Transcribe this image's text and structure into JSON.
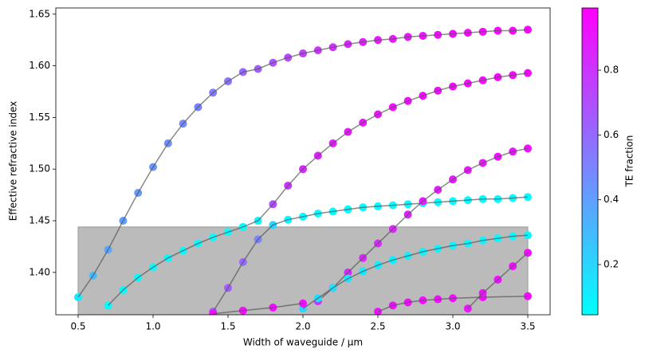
{
  "chart_data": {
    "type": "scatter",
    "xlabel": "Width of waveguide / µm",
    "ylabel": "Effective refractive index",
    "xlim": [
      0.351,
      3.649
    ],
    "ylim": [
      1.359,
      1.656
    ],
    "xticks": [
      0.5,
      {
        "value": 1.0,
        "label": "1.0"
      },
      1.5,
      {
        "value": 2.0,
        "label": "2.0"
      },
      2.5,
      {
        "value": 3.0,
        "label": "3.0"
      },
      3.5
    ],
    "yticks": [
      {
        "value": 1.4,
        "label": "1.40"
      },
      1.45,
      {
        "value": 1.5,
        "label": "1.50"
      },
      1.55,
      {
        "value": 1.6,
        "label": "1.60"
      },
      1.65
    ],
    "shaded_region": {
      "x": [
        0.5,
        3.5
      ],
      "y_top": 1.444,
      "color": "#bbbbbb"
    },
    "colorbar": {
      "label": "TE fraction",
      "colormap": "cool",
      "lim": [
        0.045,
        0.992
      ],
      "ticks": [
        0.2,
        0.4,
        0.6,
        0.8
      ]
    },
    "series": [
      {
        "x": [
          0.5,
          0.6,
          0.7,
          0.8,
          0.9,
          1.0,
          1.1,
          1.2,
          1.3,
          1.4,
          1.5,
          1.6,
          1.7,
          1.8,
          1.9,
          2.0,
          2.1,
          2.2,
          2.3,
          2.4,
          2.5,
          2.6,
          2.7,
          2.8,
          2.9,
          3.0,
          3.1,
          3.2,
          3.3,
          3.4,
          3.5
        ],
        "y": [
          1.376,
          1.397,
          1.422,
          1.45,
          1.477,
          1.502,
          1.525,
          1.544,
          1.56,
          1.574,
          1.585,
          1.594,
          1.597,
          1.603,
          1.608,
          1.612,
          1.615,
          1.618,
          1.621,
          1.623,
          1.625,
          1.626,
          1.628,
          1.629,
          1.63,
          1.631,
          1.632,
          1.633,
          1.634,
          1.634,
          1.635
        ],
        "te": [
          0.12,
          0.3,
          0.37,
          0.4,
          0.42,
          0.44,
          0.46,
          0.48,
          0.5,
          0.53,
          0.56,
          0.6,
          0.64,
          0.68,
          0.72,
          0.76,
          0.8,
          0.83,
          0.86,
          0.88,
          0.9,
          0.91,
          0.92,
          0.93,
          0.94,
          0.95,
          0.95,
          0.96,
          0.96,
          0.97,
          0.97
        ]
      },
      {
        "x": [
          0.7,
          0.8,
          0.9,
          1.0,
          1.1,
          1.2,
          1.3,
          1.4,
          1.5,
          1.6,
          1.7,
          1.8,
          1.9,
          2.0,
          2.1,
          2.2,
          2.3,
          2.4,
          2.5,
          2.6,
          2.7,
          2.8,
          2.9,
          3.0,
          3.1,
          3.2,
          3.3,
          3.4,
          3.5
        ],
        "y": [
          1.368,
          1.383,
          1.395,
          1.405,
          1.414,
          1.421,
          1.428,
          1.434,
          1.439,
          1.444,
          1.45,
          1.466,
          1.484,
          1.5,
          1.513,
          1.525,
          1.536,
          1.545,
          1.553,
          1.56,
          1.566,
          1.571,
          1.576,
          1.58,
          1.583,
          1.586,
          1.589,
          1.591,
          1.593
        ],
        "te": [
          0.06,
          0.06,
          0.06,
          0.06,
          0.06,
          0.06,
          0.06,
          0.06,
          0.06,
          0.06,
          0.08,
          0.7,
          0.8,
          0.85,
          0.88,
          0.9,
          0.91,
          0.92,
          0.93,
          0.94,
          0.94,
          0.95,
          0.95,
          0.96,
          0.96,
          0.96,
          0.97,
          0.97,
          0.97
        ]
      },
      {
        "x": [
          1.4,
          1.5,
          1.6,
          1.7,
          1.8,
          1.9,
          2.0,
          2.1,
          2.2,
          2.3,
          2.4,
          2.5,
          2.6,
          2.7,
          2.8,
          2.9,
          3.0,
          3.1,
          3.2,
          3.3,
          3.4,
          3.5
        ],
        "y": [
          1.362,
          1.385,
          1.41,
          1.432,
          1.446,
          1.451,
          1.454,
          1.457,
          1.459,
          1.461,
          1.463,
          1.464,
          1.465,
          1.466,
          1.467,
          1.468,
          1.469,
          1.47,
          1.471,
          1.471,
          1.472,
          1.473
        ],
        "te": [
          0.7,
          0.65,
          0.6,
          0.5,
          0.2,
          0.06,
          0.06,
          0.06,
          0.06,
          0.06,
          0.06,
          0.06,
          0.06,
          0.06,
          0.06,
          0.06,
          0.06,
          0.06,
          0.06,
          0.06,
          0.06,
          0.06
        ]
      },
      {
        "x": [
          2.1,
          2.2,
          2.3,
          2.4,
          2.5,
          2.6,
          2.7,
          2.8,
          2.9,
          3.0,
          3.1,
          3.2,
          3.3,
          3.4,
          3.5
        ],
        "y": [
          1.372,
          1.385,
          1.4,
          1.414,
          1.428,
          1.442,
          1.456,
          1.469,
          1.48,
          1.49,
          1.499,
          1.506,
          1.512,
          1.517,
          1.52
        ],
        "te": [
          0.8,
          0.82,
          0.84,
          0.85,
          0.86,
          0.87,
          0.88,
          0.89,
          0.9,
          0.9,
          0.91,
          0.91,
          0.92,
          0.92,
          0.92
        ]
      },
      {
        "x": [
          2.0,
          2.1,
          2.2,
          2.3,
          2.4,
          2.5,
          2.6,
          2.7,
          2.8,
          2.9,
          3.0,
          3.1,
          3.2,
          3.3,
          3.4,
          3.5
        ],
        "y": [
          1.365,
          1.375,
          1.385,
          1.394,
          1.401,
          1.407,
          1.412,
          1.416,
          1.42,
          1.423,
          1.426,
          1.428,
          1.431,
          1.433,
          1.435,
          1.436
        ],
        "te": [
          0.2,
          0.17,
          0.15,
          0.13,
          0.12,
          0.11,
          0.1,
          0.1,
          0.09,
          0.09,
          0.08,
          0.08,
          0.08,
          0.07,
          0.07,
          0.07
        ]
      },
      {
        "x": [
          1.4,
          1.6,
          1.8,
          2.0
        ],
        "y": [
          1.36,
          1.363,
          1.366,
          1.37
        ],
        "te": [
          0.95,
          0.95,
          0.95,
          0.94
        ]
      },
      {
        "x": [
          2.5,
          2.6,
          2.7,
          2.8,
          2.9,
          3.0,
          3.2,
          3.5
        ],
        "y": [
          1.362,
          1.368,
          1.371,
          1.373,
          1.374,
          1.375,
          1.376,
          1.377
        ],
        "te": [
          0.93,
          0.94,
          0.95,
          0.95,
          0.95,
          0.96,
          0.96,
          0.96
        ]
      },
      {
        "x": [
          3.1,
          3.2,
          3.3,
          3.4,
          3.5
        ],
        "y": [
          1.365,
          1.38,
          1.393,
          1.406,
          1.419
        ],
        "te": [
          0.92,
          0.93,
          0.93,
          0.94,
          0.94
        ]
      }
    ]
  }
}
